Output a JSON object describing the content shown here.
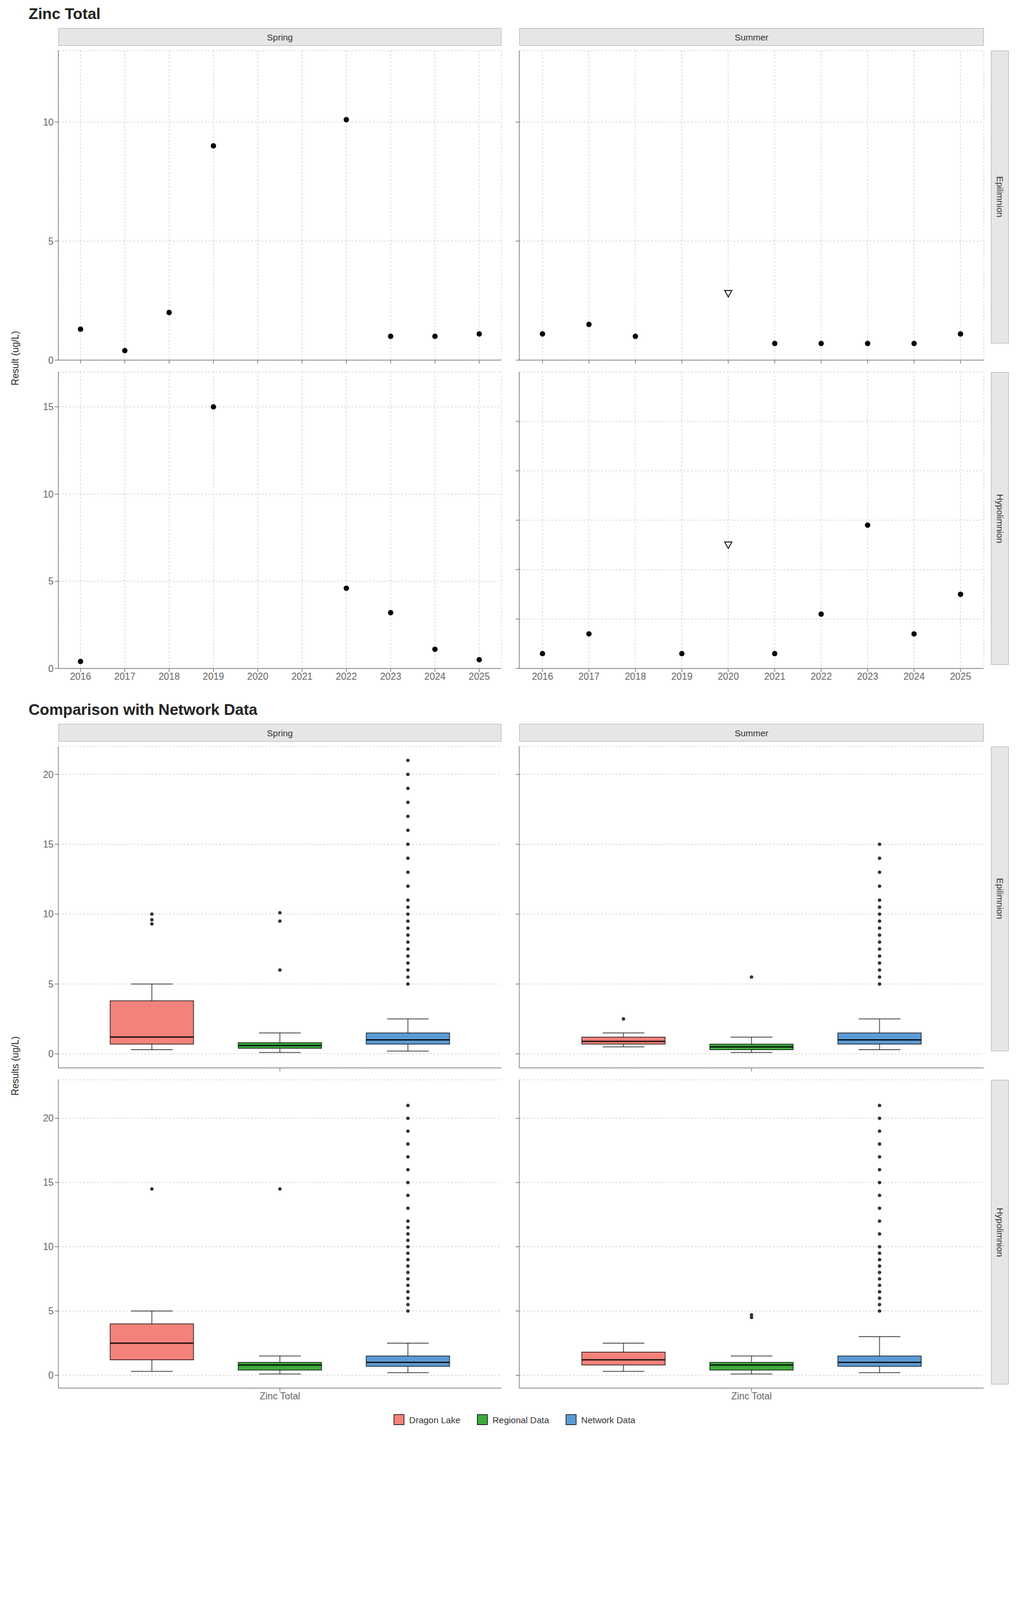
{
  "chart_data": [
    {
      "type": "scatter",
      "title": "Zinc Total",
      "ylabel": "Result (ug/L)",
      "columns": [
        "Spring",
        "Summer"
      ],
      "rows": [
        "Epilimnion",
        "Hypolimnion"
      ],
      "grid": true,
      "panels": [
        {
          "column": "Spring",
          "row": "Epilimnion",
          "xlim": [
            2015.5,
            2025.5
          ],
          "xticks": [
            2016,
            2017,
            2018,
            2019,
            2020,
            2021,
            2022,
            2023,
            2024,
            2025
          ],
          "ylim": [
            0,
            13
          ],
          "yticks": [
            0,
            5,
            10
          ],
          "tick_labels": "y",
          "series": [
            {
              "color": "#000000",
              "marker": "circle",
              "x": [
                2016,
                2017,
                2018,
                2019,
                2022,
                2023,
                2024,
                2025
              ],
              "values": [
                1.3,
                0.4,
                2.0,
                9.0,
                10.1,
                1.0,
                1.0,
                1.1
              ]
            }
          ]
        },
        {
          "column": "Summer",
          "row": "Epilimnion",
          "xlim": [
            2015.5,
            2025.5
          ],
          "xticks": [
            2016,
            2017,
            2018,
            2019,
            2020,
            2021,
            2022,
            2023,
            2024,
            2025
          ],
          "ylim": [
            0,
            13
          ],
          "yticks": [
            0,
            5,
            10
          ],
          "tick_labels": false,
          "series": [
            {
              "color": "#000000",
              "marker": "circle",
              "x": [
                2016,
                2017,
                2018,
                2021,
                2022,
                2023,
                2024,
                2025
              ],
              "values": [
                1.1,
                1.5,
                1.0,
                0.7,
                0.7,
                0.7,
                0.7,
                1.1
              ]
            },
            {
              "color": "#000000",
              "marker": "triangle_down",
              "x": [
                2020
              ],
              "values": [
                2.8
              ]
            }
          ]
        },
        {
          "column": "Spring",
          "row": "Hypolimnion",
          "xlim": [
            2015.5,
            2025.5
          ],
          "xticks": [
            2016,
            2017,
            2018,
            2019,
            2020,
            2021,
            2022,
            2023,
            2024,
            2025
          ],
          "ylim": [
            0,
            17
          ],
          "yticks": [
            0,
            5,
            10,
            15
          ],
          "series": [
            {
              "color": "#000000",
              "marker": "circle",
              "x": [
                2016,
                2019,
                2022,
                2023,
                2024,
                2025
              ],
              "values": [
                0.4,
                15.0,
                4.6,
                3.2,
                1.1,
                0.5
              ]
            }
          ]
        },
        {
          "column": "Summer",
          "row": "Hypolimnion",
          "xlim": [
            2015.5,
            2025.5
          ],
          "xticks": [
            2016,
            2017,
            2018,
            2019,
            2020,
            2021,
            2022,
            2023,
            2024,
            2025
          ],
          "ylim": [
            0,
            6
          ],
          "yticks": [
            0,
            1,
            2,
            3,
            4,
            5
          ],
          "tick_labels": "x",
          "series": [
            {
              "color": "#000000",
              "marker": "circle",
              "x": [
                2016,
                2017,
                2019,
                2021,
                2022,
                2023,
                2024,
                2025
              ],
              "values": [
                0.3,
                0.7,
                0.3,
                0.3,
                1.1,
                2.9,
                0.7,
                1.5
              ]
            },
            {
              "color": "#000000",
              "marker": "triangle_down",
              "x": [
                2020
              ],
              "values": [
                2.5
              ]
            }
          ]
        }
      ]
    },
    {
      "type": "box",
      "title": "Comparison with Network Data",
      "ylabel": "Results (ug/L)",
      "columns": [
        "Spring",
        "Summer"
      ],
      "rows": [
        "Epilimnion",
        "Hypolimnion"
      ],
      "grid": "y",
      "legend": "bottom",
      "panels": [
        {
          "column": "Spring",
          "row": "Epilimnion",
          "categories": [
            "Zinc Total"
          ],
          "ylim": [
            -1,
            22
          ],
          "yticks": [
            0,
            5,
            10,
            15,
            20
          ],
          "tick_labels": "y",
          "series": [
            {
              "name": "Dragon Lake",
              "color": "#F4827A",
              "median": 1.2,
              "q1": 0.7,
              "q3": 3.8,
              "whislo": 0.3,
              "whishi": 5.0,
              "fliers": [
                9.3,
                9.6,
                10.0
              ]
            },
            {
              "name": "Regional Data",
              "color": "#3DAA3D",
              "median": 0.6,
              "q1": 0.4,
              "q3": 0.8,
              "whislo": 0.1,
              "whishi": 1.5,
              "fliers": [
                6.0,
                9.5,
                10.1
              ]
            },
            {
              "name": "Network Data",
              "color": "#5B9BD5",
              "median": 1.0,
              "q1": 0.7,
              "q3": 1.5,
              "whislo": 0.2,
              "whishi": 2.5,
              "fliers": [
                5.0,
                5.5,
                6.0,
                6.5,
                7.0,
                7.5,
                8.0,
                8.5,
                9.0,
                9.5,
                10.0,
                10.5,
                11.0,
                12.0,
                13.0,
                14.0,
                15.0,
                16.0,
                17.0,
                18.0,
                19.0,
                20.0,
                21.0
              ]
            }
          ]
        },
        {
          "column": "Summer",
          "row": "Epilimnion",
          "categories": [
            "Zinc Total"
          ],
          "ylim": [
            -1,
            22
          ],
          "yticks": [
            0,
            5,
            10,
            15,
            20
          ],
          "tick_labels": false,
          "series": [
            {
              "name": "Dragon Lake",
              "color": "#F4827A",
              "median": 0.9,
              "q1": 0.7,
              "q3": 1.2,
              "whislo": 0.5,
              "whishi": 1.5,
              "fliers": [
                2.5
              ]
            },
            {
              "name": "Regional Data",
              "color": "#3DAA3D",
              "median": 0.5,
              "q1": 0.3,
              "q3": 0.7,
              "whislo": 0.1,
              "whishi": 1.2,
              "fliers": [
                5.5
              ]
            },
            {
              "name": "Network Data",
              "color": "#5B9BD5",
              "median": 1.0,
              "q1": 0.7,
              "q3": 1.5,
              "whislo": 0.3,
              "whishi": 2.5,
              "fliers": [
                5.0,
                5.5,
                6.0,
                6.5,
                7.0,
                7.5,
                8.0,
                8.5,
                9.0,
                9.5,
                10.0,
                10.5,
                11.0,
                12.0,
                13.0,
                14.0,
                15.0
              ]
            }
          ]
        },
        {
          "column": "Spring",
          "row": "Hypolimnion",
          "categories": [
            "Zinc Total"
          ],
          "ylim": [
            -1,
            23
          ],
          "yticks": [
            0,
            5,
            10,
            15,
            20
          ],
          "series": [
            {
              "name": "Dragon Lake",
              "color": "#F4827A",
              "median": 2.5,
              "q1": 1.2,
              "q3": 4.0,
              "whislo": 0.3,
              "whishi": 5.0,
              "fliers": [
                14.5
              ]
            },
            {
              "name": "Regional Data",
              "color": "#3DAA3D",
              "median": 0.8,
              "q1": 0.4,
              "q3": 1.0,
              "whislo": 0.1,
              "whishi": 1.5,
              "fliers": [
                14.5
              ]
            },
            {
              "name": "Network Data",
              "color": "#5B9BD5",
              "median": 1.0,
              "q1": 0.7,
              "q3": 1.5,
              "whislo": 0.2,
              "whishi": 2.5,
              "fliers": [
                5.0,
                5.5,
                6.0,
                6.5,
                7.0,
                7.5,
                8.0,
                8.5,
                9.0,
                9.5,
                10.0,
                10.5,
                11.0,
                11.5,
                12.0,
                13.0,
                14.0,
                15.0,
                16.0,
                17.0,
                18.0,
                19.0,
                20.0,
                21.0
              ]
            }
          ]
        },
        {
          "column": "Summer",
          "row": "Hypolimnion",
          "categories": [
            "Zinc Total"
          ],
          "ylim": [
            -1,
            23
          ],
          "yticks": [
            0,
            5,
            10,
            15,
            20
          ],
          "tick_labels": "x",
          "series": [
            {
              "name": "Dragon Lake",
              "color": "#F4827A",
              "median": 1.2,
              "q1": 0.8,
              "q3": 1.8,
              "whislo": 0.3,
              "whishi": 2.5,
              "fliers": []
            },
            {
              "name": "Regional Data",
              "color": "#3DAA3D",
              "median": 0.8,
              "q1": 0.4,
              "q3": 1.0,
              "whislo": 0.1,
              "whishi": 1.5,
              "fliers": [
                4.5,
                4.7
              ]
            },
            {
              "name": "Network Data",
              "color": "#5B9BD5",
              "median": 1.0,
              "q1": 0.7,
              "q3": 1.5,
              "whislo": 0.2,
              "whishi": 3.0,
              "fliers": [
                5.0,
                5.5,
                6.0,
                6.5,
                7.0,
                7.5,
                8.0,
                8.5,
                9.0,
                9.5,
                10.0,
                11.0,
                12.0,
                13.0,
                14.0,
                15.0,
                16.0,
                17.0,
                18.0,
                19.0,
                20.0,
                21.0
              ]
            }
          ]
        }
      ]
    }
  ]
}
